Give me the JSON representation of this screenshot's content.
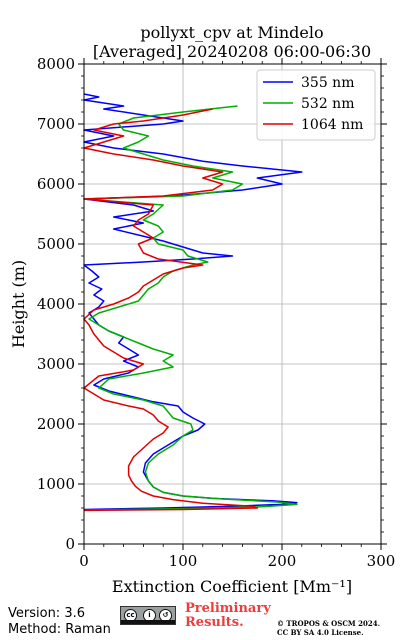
{
  "chart_data": {
    "type": "line",
    "title_line1": "pollyxt_cpv at Mindelo",
    "title_line2": "[Averaged] 20240208 06:00-06:30",
    "xlabel": "Extinction Coefficient [Mm⁻¹]",
    "ylabel": "Height (m)",
    "xlim": [
      0,
      300
    ],
    "ylim": [
      0,
      8000
    ],
    "xticks": [
      0,
      100,
      200,
      300
    ],
    "yticks": [
      0,
      1000,
      2000,
      3000,
      4000,
      5000,
      6000,
      7000,
      8000
    ],
    "grid": true,
    "legend_position": "top-right",
    "series": [
      {
        "name": "355 nm",
        "color": "#0000ff",
        "points": [
          [
            0,
            575
          ],
          [
            80,
            600
          ],
          [
            150,
            630
          ],
          [
            200,
            660
          ],
          [
            215,
            690
          ],
          [
            190,
            720
          ],
          [
            130,
            760
          ],
          [
            100,
            800
          ],
          [
            80,
            860
          ],
          [
            70,
            950
          ],
          [
            65,
            1050
          ],
          [
            60,
            1200
          ],
          [
            62,
            1350
          ],
          [
            70,
            1500
          ],
          [
            85,
            1650
          ],
          [
            100,
            1800
          ],
          [
            115,
            1900
          ],
          [
            122,
            2000
          ],
          [
            110,
            2100
          ],
          [
            100,
            2200
          ],
          [
            95,
            2300
          ],
          [
            70,
            2370
          ],
          [
            50,
            2450
          ],
          [
            25,
            2550
          ],
          [
            10,
            2650
          ],
          [
            20,
            2750
          ],
          [
            45,
            2850
          ],
          [
            55,
            2950
          ],
          [
            40,
            3050
          ],
          [
            55,
            3150
          ],
          [
            45,
            3250
          ],
          [
            35,
            3350
          ],
          [
            40,
            3450
          ],
          [
            25,
            3550
          ],
          [
            15,
            3650
          ],
          [
            10,
            3750
          ],
          [
            5,
            3850
          ],
          [
            15,
            3950
          ],
          [
            20,
            4050
          ],
          [
            10,
            4150
          ],
          [
            18,
            4250
          ],
          [
            5,
            4350
          ],
          [
            15,
            4450
          ],
          [
            8,
            4550
          ],
          [
            0,
            4650
          ],
          [
            60,
            4700
          ],
          [
            110,
            4750
          ],
          [
            150,
            4800
          ],
          [
            120,
            4850
          ],
          [
            100,
            4950
          ],
          [
            80,
            5050
          ],
          [
            55,
            5150
          ],
          [
            30,
            5250
          ],
          [
            60,
            5350
          ],
          [
            30,
            5450
          ],
          [
            70,
            5550
          ],
          [
            50,
            5650
          ],
          [
            0,
            5750
          ],
          [
            90,
            5800
          ],
          [
            160,
            5900
          ],
          [
            200,
            6000
          ],
          [
            175,
            6100
          ],
          [
            220,
            6200
          ],
          [
            160,
            6300
          ],
          [
            120,
            6380
          ],
          [
            80,
            6500
          ],
          [
            30,
            6600
          ],
          [
            0,
            6700
          ],
          [
            30,
            6800
          ],
          [
            0,
            6900
          ],
          [
            80,
            7000
          ],
          [
            100,
            7050
          ],
          [
            60,
            7150
          ],
          [
            20,
            7250
          ],
          [
            40,
            7300
          ],
          [
            0,
            7400
          ],
          [
            15,
            7450
          ],
          [
            0,
            7500
          ]
        ]
      },
      {
        "name": "532 nm",
        "color": "#00b000",
        "points": [
          [
            0,
            565
          ],
          [
            100,
            590
          ],
          [
            180,
            620
          ],
          [
            215,
            660
          ],
          [
            195,
            700
          ],
          [
            140,
            750
          ],
          [
            100,
            800
          ],
          [
            80,
            860
          ],
          [
            70,
            950
          ],
          [
            65,
            1050
          ],
          [
            62,
            1200
          ],
          [
            65,
            1350
          ],
          [
            75,
            1500
          ],
          [
            90,
            1650
          ],
          [
            100,
            1800
          ],
          [
            110,
            1900
          ],
          [
            108,
            2000
          ],
          [
            90,
            2100
          ],
          [
            85,
            2200
          ],
          [
            80,
            2300
          ],
          [
            60,
            2400
          ],
          [
            30,
            2500
          ],
          [
            15,
            2600
          ],
          [
            25,
            2750
          ],
          [
            60,
            2850
          ],
          [
            90,
            2950
          ],
          [
            80,
            3050
          ],
          [
            90,
            3150
          ],
          [
            70,
            3250
          ],
          [
            55,
            3350
          ],
          [
            40,
            3450
          ],
          [
            25,
            3550
          ],
          [
            15,
            3650
          ],
          [
            5,
            3750
          ],
          [
            15,
            3850
          ],
          [
            35,
            3950
          ],
          [
            55,
            4050
          ],
          [
            60,
            4150
          ],
          [
            65,
            4250
          ],
          [
            75,
            4350
          ],
          [
            80,
            4450
          ],
          [
            90,
            4550
          ],
          [
            110,
            4650
          ],
          [
            125,
            4700
          ],
          [
            105,
            4800
          ],
          [
            100,
            4900
          ],
          [
            75,
            5000
          ],
          [
            70,
            5100
          ],
          [
            80,
            5200
          ],
          [
            75,
            5300
          ],
          [
            60,
            5400
          ],
          [
            70,
            5500
          ],
          [
            80,
            5650
          ],
          [
            0,
            5750
          ],
          [
            100,
            5800
          ],
          [
            150,
            5900
          ],
          [
            160,
            6000
          ],
          [
            130,
            6100
          ],
          [
            150,
            6200
          ],
          [
            110,
            6300
          ],
          [
            80,
            6400
          ],
          [
            60,
            6500
          ],
          [
            40,
            6600
          ],
          [
            55,
            6700
          ],
          [
            65,
            6800
          ],
          [
            40,
            6900
          ],
          [
            35,
            7000
          ],
          [
            50,
            7100
          ],
          [
            100,
            7200
          ],
          [
            155,
            7300
          ]
        ]
      },
      {
        "name": "1064 nm",
        "color": "#e00000",
        "points": [
          [
            0,
            560
          ],
          [
            100,
            575
          ],
          [
            175,
            600
          ],
          [
            170,
            630
          ],
          [
            120,
            680
          ],
          [
            90,
            740
          ],
          [
            70,
            800
          ],
          [
            58,
            880
          ],
          [
            52,
            960
          ],
          [
            48,
            1050
          ],
          [
            45,
            1150
          ],
          [
            45,
            1300
          ],
          [
            50,
            1450
          ],
          [
            60,
            1600
          ],
          [
            70,
            1750
          ],
          [
            80,
            1850
          ],
          [
            85,
            1950
          ],
          [
            75,
            2050
          ],
          [
            70,
            2150
          ],
          [
            60,
            2250
          ],
          [
            45,
            2300
          ],
          [
            20,
            2400
          ],
          [
            10,
            2500
          ],
          [
            0,
            2600
          ],
          [
            15,
            2800
          ],
          [
            50,
            2900
          ],
          [
            60,
            3000
          ],
          [
            40,
            3100
          ],
          [
            30,
            3200
          ],
          [
            20,
            3300
          ],
          [
            15,
            3400
          ],
          [
            10,
            3500
          ],
          [
            5,
            3650
          ],
          [
            0,
            3750
          ],
          [
            10,
            3900
          ],
          [
            30,
            4000
          ],
          [
            45,
            4100
          ],
          [
            55,
            4200
          ],
          [
            60,
            4300
          ],
          [
            70,
            4400
          ],
          [
            80,
            4500
          ],
          [
            100,
            4600
          ],
          [
            120,
            4650
          ],
          [
            75,
            4750
          ],
          [
            60,
            4850
          ],
          [
            55,
            5000
          ],
          [
            70,
            5100
          ],
          [
            60,
            5200
          ],
          [
            50,
            5300
          ],
          [
            55,
            5400
          ],
          [
            65,
            5500
          ],
          [
            70,
            5650
          ],
          [
            0,
            5750
          ],
          [
            80,
            5800
          ],
          [
            130,
            5900
          ],
          [
            140,
            6000
          ],
          [
            120,
            6100
          ],
          [
            140,
            6200
          ],
          [
            100,
            6300
          ],
          [
            70,
            6400
          ],
          [
            30,
            6500
          ],
          [
            0,
            6600
          ],
          [
            20,
            6700
          ],
          [
            40,
            6800
          ],
          [
            10,
            6900
          ],
          [
            30,
            7000
          ],
          [
            60,
            7050
          ],
          [
            100,
            7150
          ],
          [
            130,
            7250
          ]
        ]
      }
    ]
  },
  "footer": {
    "version": "Version: 3.6",
    "method": "Method: Raman",
    "preliminary_line1": "Preliminary",
    "preliminary_line2": "Results.",
    "copyright_line1": "© TROPOS & OSCM 2024.",
    "copyright_line2": "CC BY SA 4.0 License."
  }
}
